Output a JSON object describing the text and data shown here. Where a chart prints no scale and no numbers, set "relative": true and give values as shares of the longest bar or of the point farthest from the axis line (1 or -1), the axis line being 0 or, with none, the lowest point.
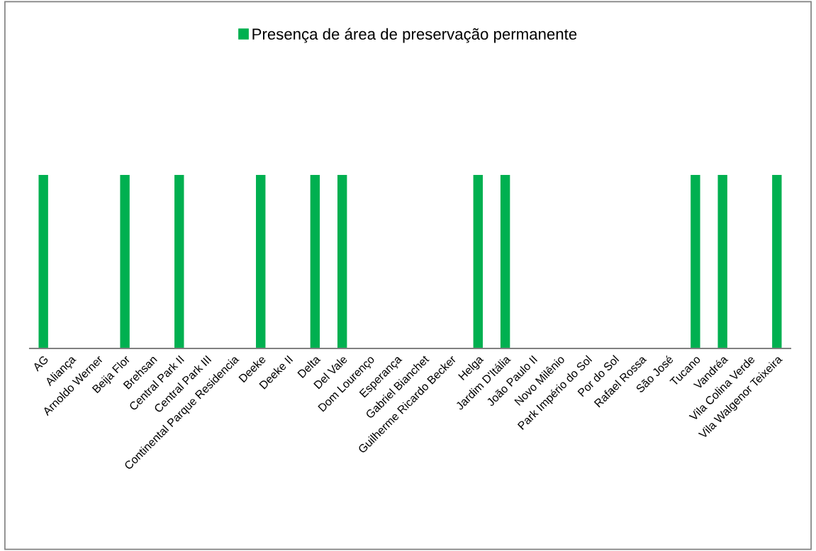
{
  "chart_data": {
    "type": "bar",
    "relative": true,
    "categories": [
      "AG",
      "Aliança",
      "Arnoldo Werner",
      "Beija Flor",
      "Brehsan",
      "Central Park II",
      "Central Park III",
      "Continental Parque Residencia",
      "Deeke",
      "Deeke II",
      "Delta",
      "Del Vale",
      "Dom Lourenço",
      "Esperança",
      "Gabriel Bianchet",
      "Guilherme Ricardo Becker",
      "Helga",
      "Jardim D'Itália",
      "João Paulo II",
      "Novo Milênio",
      "Park Império do Sol",
      "Por do Sol",
      "Rafael Rossa",
      "São José",
      "Tucano",
      "Vandréa",
      "Vila Colina Verde",
      "Vila Walgenor Teixeira"
    ],
    "series": [
      {
        "name": "Presença de área de preservação permanente",
        "color": "#00b050",
        "values": [
          1,
          0,
          0,
          1,
          0,
          1,
          0,
          0,
          1,
          0,
          1,
          1,
          0,
          0,
          0,
          0,
          1,
          1,
          0,
          0,
          0,
          0,
          0,
          0,
          1,
          1,
          0,
          1
        ]
      }
    ],
    "legend": "top",
    "grid": false
  }
}
